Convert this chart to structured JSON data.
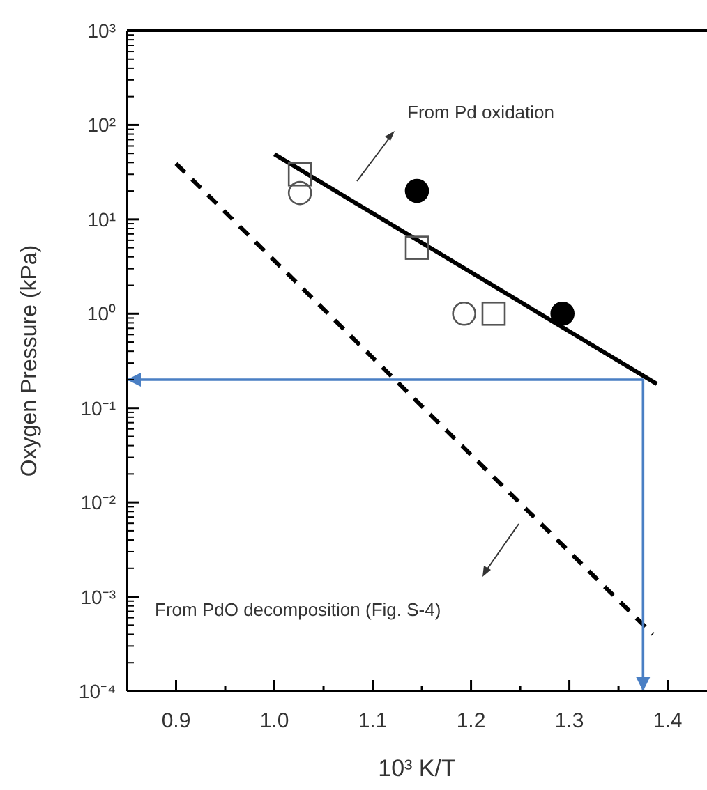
{
  "chart_data": {
    "type": "scatter",
    "xlabel": "10³ K/T",
    "ylabel": "Oxygen Pressure (kPa)",
    "log": "y",
    "xlim": [
      0.85,
      1.44
    ],
    "ylim": [
      0.0001,
      1000
    ],
    "xticks": [
      0.9,
      {
        "value": 0.95,
        "label": null
      },
      {
        "value": 1.0,
        "label": "1.0"
      },
      {
        "value": 1.05,
        "label": null
      },
      1.1,
      {
        "value": 1.15,
        "label": null
      },
      1.2,
      {
        "value": 1.25,
        "label": null
      },
      1.3,
      {
        "value": 1.35,
        "label": null
      },
      1.4
    ],
    "yticks": [
      {
        "value": 0.0001,
        "label": "10⁻⁴"
      },
      {
        "value": 0.001,
        "label": "10⁻³"
      },
      {
        "value": 0.01,
        "label": "10⁻²"
      },
      {
        "value": 0.1,
        "label": "10⁻¹"
      },
      {
        "value": 1,
        "label": "10⁰"
      },
      {
        "value": 10,
        "label": "10¹"
      },
      {
        "value": 100,
        "label": "10²"
      },
      {
        "value": 1000,
        "label": "10³"
      }
    ],
    "grid": false,
    "series": [
      {
        "type": "line",
        "color": "#000000",
        "line_style": "solid",
        "marker": "none",
        "x": [
          1.0,
          1.389
        ],
        "values": [
          49,
          0.18
        ]
      },
      {
        "type": "line",
        "color": "#000000",
        "line_style": "dashed",
        "marker": "none",
        "x": [
          0.9,
          1.385
        ],
        "values": [
          39,
          0.0004
        ]
      },
      {
        "type": "line",
        "color": "#4a7fc4",
        "line_style": "solid",
        "marker": "none",
        "x": [
          0.85,
          1.375,
          1.375
        ],
        "values": [
          0.2,
          0.2,
          0.0001
        ]
      },
      {
        "color": "#555555",
        "marker": "circle",
        "x": [
          1.026,
          1.193
        ],
        "values": [
          19,
          1
        ]
      },
      {
        "color": "#555555",
        "marker": "square",
        "x": [
          1.026,
          1.145,
          1.223
        ],
        "values": [
          30,
          5,
          1
        ]
      },
      {
        "color": "#000000",
        "marker": "circle",
        "x": [
          1.145,
          1.293
        ],
        "values": [
          20,
          1
        ]
      }
    ],
    "annotations": [
      "From Pd oxidation",
      "From PdO decomposition (Fig. S-4)"
    ]
  }
}
